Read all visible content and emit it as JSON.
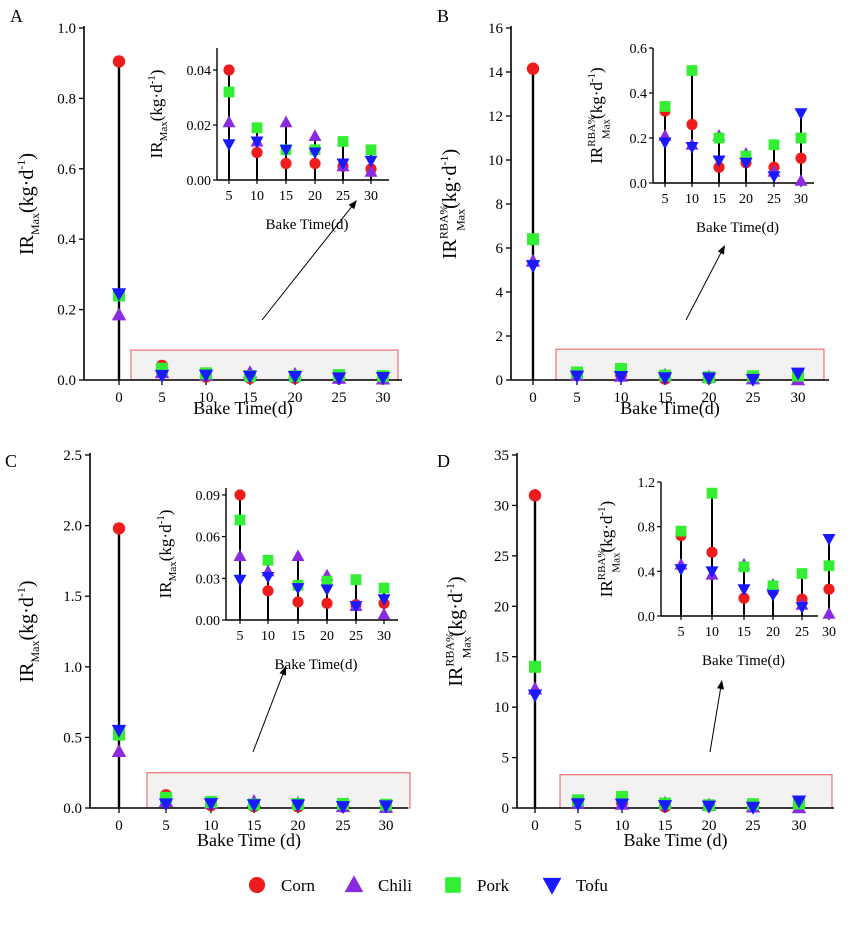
{
  "figure": {
    "legend": [
      {
        "name": "Corn",
        "color": "#ee1c1c",
        "marker": "circle"
      },
      {
        "name": "Chili",
        "color": "#8a2be2",
        "marker": "triangle-up"
      },
      {
        "name": "Pork",
        "color": "#33ee33",
        "marker": "square"
      },
      {
        "name": "Tofu",
        "color": "#1a1aff",
        "marker": "triangle-down"
      }
    ]
  },
  "chart_data": [
    {
      "type": "scatter",
      "panel": "A",
      "xlabel": "Bake Time(d)",
      "ylabel": {
        "base": "IR",
        "sub": "Max",
        "sup": "",
        "unit": "(kg·d",
        "exp": "-1",
        "close": ")"
      },
      "x": [
        0,
        5,
        10,
        15,
        20,
        25,
        30
      ],
      "x_ticklabels": [
        "0",
        "5",
        "10",
        "15",
        "20",
        "25",
        "30"
      ],
      "ylim": [
        0,
        1.0
      ],
      "y_ticks": [
        0.0,
        0.2,
        0.4,
        0.6,
        0.8,
        1.0
      ],
      "y_ticklabels": [
        "0.0",
        "0.2",
        "0.4",
        "0.6",
        "0.8",
        "1.0"
      ],
      "series": [
        {
          "name": "Corn",
          "values": [
            0.905,
            0.04,
            0.01,
            0.006,
            0.006,
            0.005,
            0.004
          ]
        },
        {
          "name": "Chili",
          "values": [
            0.185,
            0.021,
            0.014,
            0.021,
            0.016,
            0.005,
            0.003
          ]
        },
        {
          "name": "Pork",
          "values": [
            0.24,
            0.032,
            0.019,
            0.011,
            0.011,
            0.014,
            0.011
          ]
        },
        {
          "name": "Tofu",
          "values": [
            0.245,
            0.013,
            0.014,
            0.011,
            0.01,
            0.006,
            0.007
          ]
        }
      ],
      "inset": {
        "xlabel": "Bake Time(d)",
        "x_ticklabels": [
          "5",
          "10",
          "15",
          "20",
          "25",
          "30"
        ],
        "ylim": [
          0,
          0.048
        ],
        "y_ticks": [
          0,
          0.02,
          0.04
        ],
        "y_ticklabels": [
          "0.00",
          "0.02",
          "0.04"
        ],
        "ylabel": {
          "base": "IR",
          "sub": "Max",
          "sup": "",
          "unit": "(kg·d",
          "exp": "-1",
          "close": ")"
        }
      },
      "zoom_box_ymax": 0.085
    },
    {
      "type": "scatter",
      "panel": "B",
      "xlabel": "Bake Time(d)",
      "ylabel": {
        "base": "IR",
        "sub": "Max",
        "sup": "RBA%",
        "unit": "(kg·d",
        "exp": "-1",
        "close": ")"
      },
      "x": [
        0,
        5,
        10,
        15,
        20,
        25,
        30
      ],
      "x_ticklabels": [
        "0",
        "5",
        "10",
        "15",
        "20",
        "25",
        "30"
      ],
      "ylim": [
        0,
        16
      ],
      "y_ticks": [
        0,
        2,
        4,
        6,
        8,
        10,
        12,
        14,
        16
      ],
      "y_ticklabels": [
        "0",
        "2",
        "4",
        "6",
        "8",
        "10",
        "12",
        "14",
        "16"
      ],
      "series": [
        {
          "name": "Corn",
          "values": [
            14.15,
            0.32,
            0.26,
            0.07,
            0.09,
            0.07,
            0.11
          ]
        },
        {
          "name": "Chili",
          "values": [
            5.4,
            0.21,
            0.17,
            0.21,
            0.13,
            0.05,
            0.01
          ]
        },
        {
          "name": "Pork",
          "values": [
            6.4,
            0.34,
            0.5,
            0.2,
            0.12,
            0.17,
            0.2
          ]
        },
        {
          "name": "Tofu",
          "values": [
            5.2,
            0.18,
            0.16,
            0.1,
            0.09,
            0.03,
            0.31
          ]
        }
      ],
      "inset": {
        "xlabel": "Bake Time(d)",
        "x_ticklabels": [
          "5",
          "10",
          "15",
          "20",
          "25",
          "30"
        ],
        "ylim": [
          0,
          0.6
        ],
        "y_ticks": [
          0,
          0.2,
          0.4,
          0.6
        ],
        "y_ticklabels": [
          "0.0",
          "0.2",
          "0.4",
          "0.6"
        ],
        "ylabel": {
          "base": "IR",
          "sub": "Max",
          "sup": "RBA%",
          "unit": "(kg·d",
          "exp": "-1",
          "close": ")"
        }
      },
      "zoom_box_ymax": 1.4
    },
    {
      "type": "scatter",
      "panel": "C",
      "xlabel": "Bake Time (d)",
      "ylabel": {
        "base": "IR",
        "sub": "Max",
        "sup": "",
        "unit": "(kg·d",
        "exp": "-1",
        "close": ")"
      },
      "x": [
        0,
        5,
        10,
        15,
        20,
        25,
        30
      ],
      "x_ticklabels": [
        "0",
        "5",
        "10",
        "15",
        "20",
        "25",
        "30"
      ],
      "ylim": [
        0,
        2.5
      ],
      "y_ticks": [
        0.0,
        0.5,
        1.0,
        1.5,
        2.0,
        2.5
      ],
      "y_ticklabels": [
        "0.0",
        "0.5",
        "1.0",
        "1.5",
        "2.0",
        "2.5"
      ],
      "series": [
        {
          "name": "Corn",
          "values": [
            1.98,
            0.09,
            0.021,
            0.013,
            0.012,
            0.011,
            0.012
          ]
        },
        {
          "name": "Chili",
          "values": [
            0.4,
            0.046,
            0.035,
            0.046,
            0.032,
            0.01,
            0.004
          ]
        },
        {
          "name": "Pork",
          "values": [
            0.52,
            0.072,
            0.043,
            0.025,
            0.028,
            0.029,
            0.023
          ]
        },
        {
          "name": "Tofu",
          "values": [
            0.55,
            0.029,
            0.031,
            0.023,
            0.022,
            0.01,
            0.015
          ]
        }
      ],
      "inset": {
        "xlabel": "Bake Time(d)",
        "x_ticklabels": [
          "5",
          "10",
          "15",
          "20",
          "25",
          "30"
        ],
        "ylim": [
          0,
          0.095
        ],
        "y_ticks": [
          0,
          0.03,
          0.06,
          0.09
        ],
        "y_ticklabels": [
          "0.00",
          "0.03",
          "0.06",
          "0.09"
        ],
        "ylabel": {
          "base": "IR",
          "sub": "Max",
          "sup": "",
          "unit": "(kg·d",
          "exp": "-1",
          "close": ")"
        }
      },
      "zoom_box_ymax": 0.25
    },
    {
      "type": "scatter",
      "panel": "D",
      "xlabel": "Bake Time (d)",
      "ylabel": {
        "base": "IR",
        "sub": "Max",
        "sup": "RBA%",
        "unit": "(kg·d",
        "exp": "-1",
        "close": ")"
      },
      "x": [
        0,
        5,
        10,
        15,
        20,
        25,
        30
      ],
      "x_ticklabels": [
        "0",
        "5",
        "10",
        "15",
        "20",
        "25",
        "30"
      ],
      "ylim": [
        0,
        35
      ],
      "y_ticks": [
        0,
        5,
        10,
        15,
        20,
        25,
        30,
        35
      ],
      "y_ticklabels": [
        "0",
        "5",
        "10",
        "15",
        "20",
        "25",
        "30",
        "35"
      ],
      "series": [
        {
          "name": "Corn",
          "values": [
            31.0,
            0.72,
            0.57,
            0.16,
            0.22,
            0.15,
            0.24
          ]
        },
        {
          "name": "Chili",
          "values": [
            11.8,
            0.46,
            0.37,
            0.46,
            0.28,
            0.1,
            0.02
          ]
        },
        {
          "name": "Pork",
          "values": [
            14.0,
            0.76,
            1.1,
            0.44,
            0.27,
            0.38,
            0.45
          ]
        },
        {
          "name": "Tofu",
          "values": [
            11.2,
            0.42,
            0.4,
            0.24,
            0.19,
            0.08,
            0.69
          ]
        }
      ],
      "inset": {
        "xlabel": "Bake Time(d)",
        "x_ticklabels": [
          "5",
          "10",
          "15",
          "20",
          "25",
          "30"
        ],
        "ylim": [
          0,
          1.2
        ],
        "y_ticks": [
          0,
          0.4,
          0.8,
          1.2
        ],
        "y_ticklabels": [
          "0.0",
          "0.4",
          "0.8",
          "1.2"
        ],
        "ylabel": {
          "base": "IR",
          "sub": "Max",
          "sup": "RBA%",
          "unit": "(kg·d",
          "exp": "-1",
          "close": ")"
        }
      },
      "zoom_box_ymax": 3.3
    }
  ]
}
